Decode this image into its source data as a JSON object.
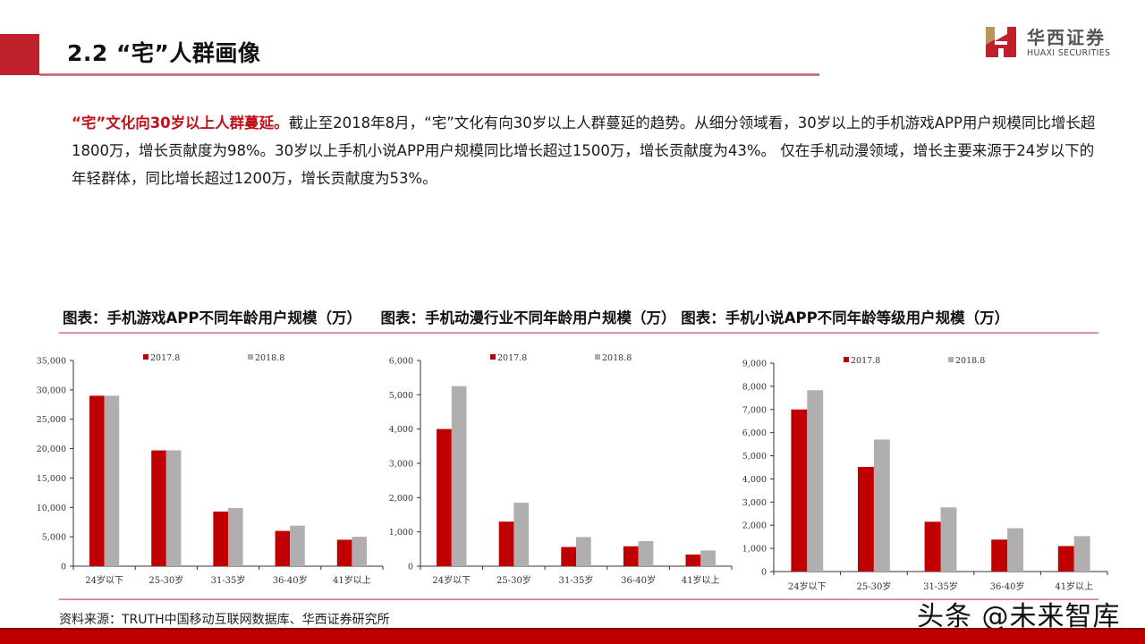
{
  "header": {
    "section_title": "2.2 “宅”人群画像",
    "logo": {
      "name_cn": "华西证券",
      "name_en": "HUAXI SECURITIES",
      "icon": "huaxi-h-logo-icon"
    }
  },
  "colors": {
    "accent": "#c0202a",
    "series_2017": "#c00000",
    "series_2018": "#b0aeae",
    "footer": "#c00000"
  },
  "paragraph": {
    "highlight": "“宅”文化向30岁以上人群蔓延。",
    "body": "截止至2018年8月，“宅”文化有向30岁以上人群蔓延的趋势。从细分领域看，30岁以上的手机游戏APP用户规模同比增长超1800万，增长贡献度为98%。30岁以上手机小说APP用户规模同比增长超过1500万，增长贡献度为43%。 仅在手机动漫领域，增长主要来源于24岁以下的年轻群体，同比增长超过1200万，增长贡献度为53%。"
  },
  "chart_titles": [
    "图表：手机游戏APP不同年龄用户规模（万）",
    "图表：手机动漫行业不同年龄用户规模（万）",
    "图表：手机小说APP不同年龄等级用户规模（万）"
  ],
  "chart_data": [
    {
      "type": "bar",
      "title": "图表：手机游戏APP不同年龄用户规模（万）",
      "categories": [
        "24岁以下",
        "25-30岁",
        "31-35岁",
        "36-40岁",
        "41岁以上"
      ],
      "series": [
        {
          "name": "2017.8",
          "values": [
            29000,
            19700,
            9300,
            6000,
            4500
          ]
        },
        {
          "name": "2018.8",
          "values": [
            29000,
            19700,
            9900,
            6900,
            5000
          ]
        }
      ],
      "yticks": [
        "0",
        "5,000",
        "10,000",
        "15,000",
        "20,000",
        "25,000",
        "30,000",
        "35,000"
      ],
      "ylim": [
        0,
        35000
      ],
      "xlabel": "",
      "ylabel": "",
      "grid": false,
      "legend_position": "top"
    },
    {
      "type": "bar",
      "title": "图表：手机动漫行业不同年龄用户规模（万）",
      "categories": [
        "24岁以下",
        "25-30岁",
        "31-35岁",
        "36-40岁",
        "41岁以上"
      ],
      "series": [
        {
          "name": "2017.8",
          "values": [
            4000,
            1300,
            560,
            580,
            340
          ]
        },
        {
          "name": "2018.8",
          "values": [
            5250,
            1850,
            850,
            730,
            460
          ]
        }
      ],
      "yticks": [
        "0",
        "1,000",
        "2,000",
        "3,000",
        "4,000",
        "5,000",
        "6,000"
      ],
      "ylim": [
        0,
        6000
      ],
      "xlabel": "",
      "ylabel": "",
      "grid": false,
      "legend_position": "top"
    },
    {
      "type": "bar",
      "title": "图表：手机小说APP不同年龄等级用户规模（万）",
      "categories": [
        "24岁以下",
        "25-30岁",
        "31-35岁",
        "36-40岁",
        "41岁以上"
      ],
      "series": [
        {
          "name": "2017.8",
          "values": [
            7000,
            4520,
            2150,
            1380,
            1100
          ]
        },
        {
          "name": "2018.8",
          "values": [
            7830,
            5700,
            2770,
            1870,
            1530
          ]
        }
      ],
      "yticks": [
        "0",
        "1,000",
        "2,000",
        "3,000",
        "4,000",
        "5,000",
        "6,000",
        "7,000",
        "8,000",
        "9,000"
      ],
      "ylim": [
        0,
        9000
      ],
      "xlabel": "",
      "ylabel": "",
      "grid": false,
      "legend_position": "top"
    }
  ],
  "footer": {
    "source": "资料来源：TRUTH中国移动互联网数据库、华西证券研究所",
    "watermark": "头条 @未来智库"
  }
}
